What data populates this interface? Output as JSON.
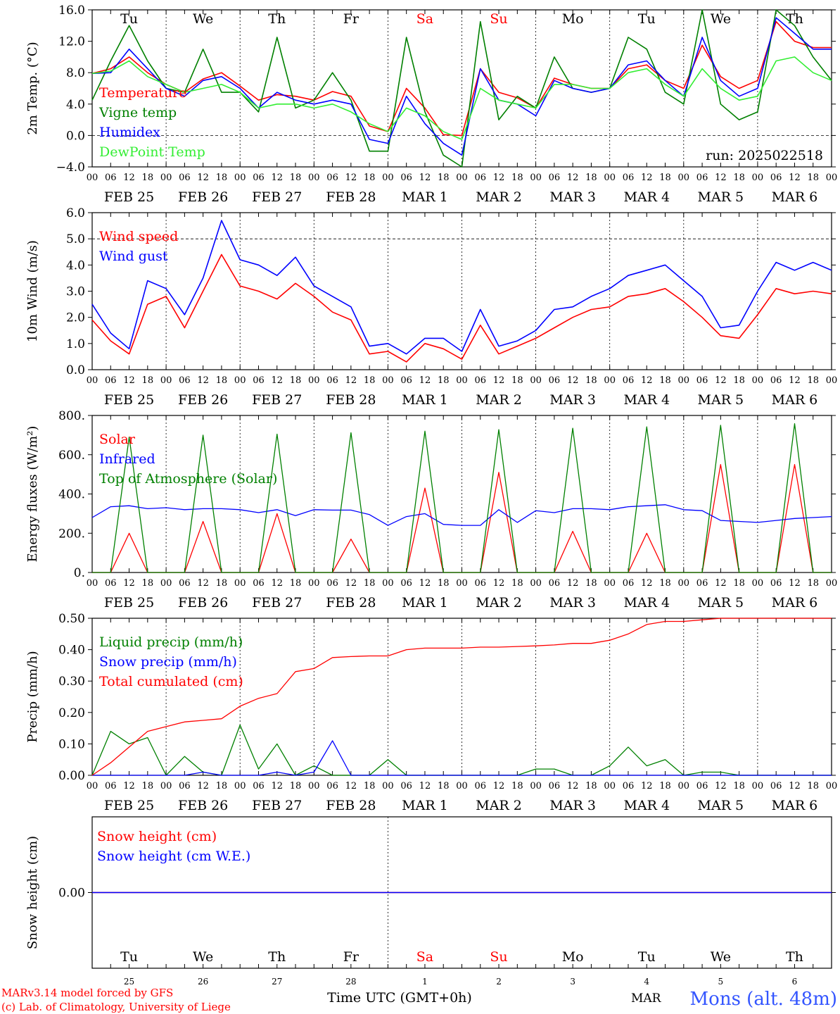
{
  "run_label": "run: 2025022518",
  "hours_ticks": [
    "00",
    "06",
    "12",
    "18"
  ],
  "day_labels": [
    "FEB 25",
    "FEB 26",
    "FEB 27",
    "FEB 28",
    "MAR  1",
    "MAR  2",
    "MAR  3",
    "MAR  4",
    "MAR  5",
    "MAR  6"
  ],
  "weekdays": [
    "Tu",
    "We",
    "Th",
    "Fr",
    "Sa",
    "Su",
    "Mo",
    "Tu",
    "We",
    "Th"
  ],
  "weekday_colors": [
    "#000000",
    "#000000",
    "#000000",
    "#000000",
    "#ff0000",
    "#ff0000",
    "#000000",
    "#000000",
    "#000000",
    "#000000"
  ],
  "day_numbers": [
    "25",
    "26",
    "27",
    "28",
    "1",
    "2",
    "3",
    "4",
    "5",
    "6"
  ],
  "month_label": "MAR",
  "xlabel": "Time UTC (GMT+0h)",
  "station_label": "Mons (alt. 48m)",
  "credit_line1": "MARv3.14 model forced by GFS",
  "credit_line2": "(c) Lab. of Climatology, University of Liege",
  "colors": {
    "red": "#ff0000",
    "green": "#008000",
    "blue": "#0000ff",
    "lightgreen": "#33ee33",
    "station": "#3355ff"
  },
  "chart_data": [
    {
      "type": "line",
      "ylabel": "2m Temp. (°C)",
      "ylim": [
        -4.0,
        16.0
      ],
      "yticks": [
        -4.0,
        0.0,
        4.0,
        8.0,
        12.0,
        16.0
      ],
      "ytick_labels": [
        "−4.0",
        "0.0",
        "4.0",
        "8.0",
        "12.0",
        "16.0"
      ],
      "x": [
        0,
        6,
        12,
        18,
        24,
        30,
        36,
        42,
        48,
        54,
        60,
        66,
        72,
        78,
        84,
        90,
        96,
        102,
        108,
        114,
        120,
        126,
        132,
        138,
        144,
        150,
        156,
        162,
        168,
        174,
        180,
        186,
        192,
        198,
        204,
        210,
        216,
        222,
        228,
        234,
        240
      ],
      "series": [
        {
          "name": "Temperature",
          "color": "#ff0000",
          "values": [
            7.9,
            8.5,
            10.0,
            8.0,
            6.5,
            5.5,
            7.2,
            8.0,
            6.3,
            4.5,
            5.2,
            5.0,
            4.5,
            5.6,
            5.0,
            1.2,
            0.5,
            6.0,
            3.5,
            0.1,
            0.0,
            8.5,
            5.5,
            4.8,
            3.5,
            7.3,
            6.5,
            6.0,
            6.0,
            8.5,
            9.0,
            7.0,
            6.0,
            11.5,
            7.5,
            6.0,
            7.0,
            14.5,
            12.0,
            11.2,
            11.2
          ]
        },
        {
          "name": "Vigne temp",
          "color": "#008000",
          "values": [
            4.5,
            9.5,
            14.0,
            9.5,
            6.0,
            5.5,
            11.0,
            5.5,
            5.5,
            3.0,
            12.5,
            3.5,
            4.5,
            8.0,
            4.5,
            -2.0,
            -2.0,
            12.5,
            3.0,
            -2.5,
            -4.0,
            14.5,
            2.0,
            5.0,
            3.5,
            10.0,
            6.0,
            5.5,
            6.0,
            12.5,
            11.0,
            5.5,
            4.0,
            16.0,
            4.0,
            2.0,
            3.0,
            16.0,
            14.0,
            10.0,
            7.0
          ]
        },
        {
          "name": "Humidex",
          "color": "#0000ff",
          "values": [
            7.9,
            8.0,
            11.0,
            8.5,
            6.0,
            5.0,
            7.0,
            7.5,
            6.0,
            3.5,
            5.5,
            4.5,
            4.0,
            4.5,
            4.0,
            -0.5,
            -1.0,
            5.0,
            1.5,
            -1.0,
            -2.5,
            8.5,
            4.5,
            4.0,
            2.5,
            7.0,
            6.0,
            5.5,
            6.0,
            9.0,
            9.5,
            7.0,
            5.0,
            12.5,
            7.0,
            5.0,
            6.0,
            15.0,
            13.0,
            11.0,
            11.0
          ]
        },
        {
          "name": "DewPoint Temp",
          "color": "#33ee33",
          "values": [
            7.9,
            8.2,
            9.5,
            7.5,
            6.5,
            5.5,
            6.0,
            6.5,
            5.5,
            3.5,
            4.0,
            4.0,
            3.5,
            4.0,
            3.0,
            1.5,
            0.5,
            3.5,
            2.5,
            0.5,
            -0.5,
            6.0,
            4.5,
            4.0,
            3.5,
            6.5,
            6.5,
            6.0,
            6.0,
            8.0,
            8.5,
            6.5,
            5.0,
            8.5,
            6.0,
            4.5,
            5.0,
            9.5,
            10.0,
            8.0,
            7.0
          ]
        }
      ]
    },
    {
      "type": "line",
      "ylabel": "10m Wind (m/s)",
      "ylim": [
        0.0,
        6.0
      ],
      "yticks": [
        0.0,
        1.0,
        2.0,
        3.0,
        4.0,
        5.0,
        6.0
      ],
      "ytick_labels": [
        "0.0",
        "1.0",
        "2.0",
        "3.0",
        "4.0",
        "5.0",
        "6.0"
      ],
      "x": [
        0,
        6,
        12,
        18,
        24,
        30,
        36,
        42,
        48,
        54,
        60,
        66,
        72,
        78,
        84,
        90,
        96,
        102,
        108,
        114,
        120,
        126,
        132,
        138,
        144,
        150,
        156,
        162,
        168,
        174,
        180,
        186,
        192,
        198,
        204,
        210,
        216,
        222,
        228,
        234,
        240
      ],
      "series": [
        {
          "name": "Wind speed",
          "color": "#ff0000",
          "values": [
            1.9,
            1.1,
            0.6,
            2.5,
            2.8,
            1.6,
            3.0,
            4.4,
            3.2,
            3.0,
            2.7,
            3.3,
            2.8,
            2.2,
            1.9,
            0.6,
            0.7,
            0.3,
            1.0,
            0.8,
            0.4,
            1.7,
            0.6,
            0.9,
            1.2,
            1.6,
            2.0,
            2.3,
            2.4,
            2.8,
            2.9,
            3.1,
            2.6,
            2.0,
            1.3,
            1.2,
            2.1,
            3.1,
            2.9,
            3.0,
            2.9
          ]
        },
        {
          "name": "Wind gust",
          "color": "#0000ff",
          "values": [
            2.5,
            1.4,
            0.8,
            3.4,
            3.1,
            2.1,
            3.5,
            5.7,
            4.2,
            4.0,
            3.6,
            4.3,
            3.2,
            2.8,
            2.4,
            0.9,
            1.0,
            0.6,
            1.2,
            1.2,
            0.7,
            2.3,
            0.9,
            1.1,
            1.5,
            2.3,
            2.4,
            2.8,
            3.1,
            3.6,
            3.8,
            4.0,
            3.4,
            2.8,
            1.6,
            1.7,
            3.0,
            4.1,
            3.8,
            4.1,
            3.8
          ]
        }
      ]
    },
    {
      "type": "line",
      "ylabel": "Energy fluxes (W/m²)",
      "ylim": [
        0,
        800
      ],
      "yticks": [
        0,
        200,
        400,
        600,
        800
      ],
      "ytick_labels": [
        "0.",
        "200.",
        "400.",
        "600.",
        "800."
      ],
      "x": [
        0,
        6,
        12,
        18,
        24,
        30,
        36,
        42,
        48,
        54,
        60,
        66,
        72,
        78,
        84,
        90,
        96,
        102,
        108,
        114,
        120,
        126,
        132,
        138,
        144,
        150,
        156,
        162,
        168,
        174,
        180,
        186,
        192,
        198,
        204,
        210,
        216,
        222,
        228,
        234,
        240
      ],
      "series": [
        {
          "name": "Solar",
          "color": "#ff0000",
          "values": [
            0,
            0,
            200,
            0,
            0,
            0,
            260,
            0,
            0,
            0,
            300,
            0,
            0,
            0,
            170,
            0,
            0,
            0,
            430,
            0,
            0,
            0,
            510,
            0,
            0,
            0,
            210,
            0,
            0,
            0,
            200,
            0,
            0,
            0,
            550,
            0,
            0,
            0,
            550,
            0,
            0
          ]
        },
        {
          "name": "Infrared",
          "color": "#0000ff",
          "values": [
            280,
            335,
            340,
            325,
            330,
            320,
            325,
            325,
            320,
            305,
            320,
            290,
            320,
            318,
            318,
            295,
            240,
            285,
            300,
            245,
            240,
            240,
            320,
            255,
            315,
            305,
            325,
            325,
            320,
            335,
            340,
            345,
            320,
            315,
            265,
            260,
            255,
            265,
            275,
            280,
            285
          ]
        },
        {
          "name": "Top of Atmosphere (Solar)",
          "color": "#008000",
          "values": [
            0,
            0,
            690,
            0,
            0,
            0,
            700,
            0,
            0,
            0,
            705,
            0,
            0,
            0,
            712,
            0,
            0,
            0,
            720,
            0,
            0,
            0,
            728,
            0,
            0,
            0,
            735,
            0,
            0,
            0,
            742,
            0,
            0,
            0,
            750,
            0,
            0,
            0,
            758,
            0,
            0
          ]
        }
      ]
    },
    {
      "type": "line",
      "ylabel": "Precip (mm/h)",
      "ylim": [
        0.0,
        0.5
      ],
      "yticks": [
        0.0,
        0.1,
        0.2,
        0.3,
        0.4,
        0.5
      ],
      "ytick_labels": [
        "0.00",
        "0.10",
        "0.20",
        "0.30",
        "0.40",
        "0.50"
      ],
      "x": [
        0,
        6,
        12,
        18,
        24,
        30,
        36,
        42,
        48,
        54,
        60,
        66,
        72,
        78,
        84,
        90,
        96,
        102,
        108,
        114,
        120,
        126,
        132,
        138,
        144,
        150,
        156,
        162,
        168,
        174,
        180,
        186,
        192,
        198,
        204,
        210,
        216,
        222,
        228,
        234,
        240
      ],
      "series": [
        {
          "name": "Liquid precip (mm/h)",
          "color": "#008000",
          "values": [
            0.0,
            0.14,
            0.1,
            0.12,
            0.0,
            0.06,
            0.01,
            0.0,
            0.16,
            0.02,
            0.1,
            0.0,
            0.03,
            0.0,
            0.0,
            0.0,
            0.05,
            0.0,
            0.0,
            0.0,
            0.0,
            0.0,
            0.0,
            0.0,
            0.02,
            0.02,
            0.0,
            0.0,
            0.03,
            0.09,
            0.03,
            0.05,
            0.0,
            0.01,
            0.01,
            0.0,
            0.0,
            0.0,
            0.0,
            0.0,
            0.0
          ]
        },
        {
          "name": "Snow precip (mm/h)",
          "color": "#0000ff",
          "values": [
            0.0,
            0.0,
            0.0,
            0.0,
            0.0,
            0.0,
            0.01,
            0.0,
            0.0,
            0.0,
            0.01,
            0.0,
            0.01,
            0.11,
            0.0,
            0.0,
            0.0,
            0.0,
            0.0,
            0.0,
            0.0,
            0.0,
            0.0,
            0.0,
            0.0,
            0.0,
            0.0,
            0.0,
            0.0,
            0.0,
            0.0,
            0.0,
            0.0,
            0.0,
            0.0,
            0.0,
            0.0,
            0.0,
            0.0,
            0.0,
            0.0
          ]
        },
        {
          "name": "Total cumulated (cm)",
          "color": "#ff0000",
          "values": [
            0.0,
            0.04,
            0.09,
            0.14,
            0.155,
            0.17,
            0.175,
            0.18,
            0.22,
            0.245,
            0.26,
            0.33,
            0.34,
            0.375,
            0.378,
            0.38,
            0.38,
            0.4,
            0.405,
            0.405,
            0.405,
            0.408,
            0.408,
            0.41,
            0.412,
            0.415,
            0.42,
            0.42,
            0.43,
            0.45,
            0.48,
            0.49,
            0.49,
            0.495,
            0.5,
            0.5,
            0.5,
            0.5,
            0.5,
            0.5,
            0.5
          ]
        }
      ]
    },
    {
      "type": "line",
      "ylabel": "Snow height (cm)",
      "ylim": [
        -0.05,
        0.05
      ],
      "yticks": [
        0.0
      ],
      "ytick_labels": [
        "0.00"
      ],
      "x": [
        0,
        240
      ],
      "series": [
        {
          "name": "Snow height (cm)",
          "color": "#ff0000",
          "values": [
            0.0,
            0.0
          ]
        },
        {
          "name": "Snow height (cm W.E.)",
          "color": "#0000ff",
          "values": [
            0.0,
            0.0
          ]
        }
      ]
    }
  ]
}
